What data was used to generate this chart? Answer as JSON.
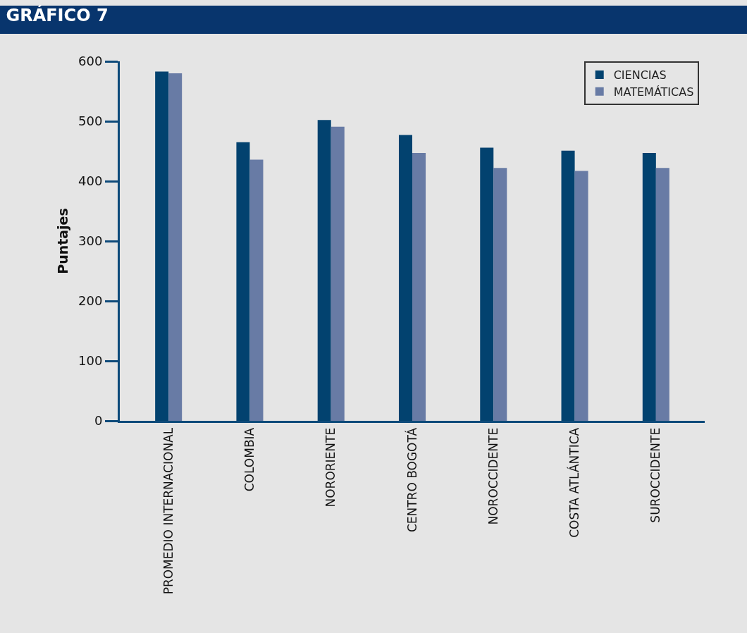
{
  "chart_data": {
    "type": "bar",
    "title": "GRÁFICO 7",
    "ylabel": "Puntajes",
    "categories": [
      "PROMEDIO INTERNACIONAL",
      "COLOMBIA",
      "NORORIENTE",
      "CENTRO BOGOTÁ",
      "NOROCCIDENTE",
      "COSTA ATLÁNTICA",
      "SUROCCIDENTE"
    ],
    "series": [
      {
        "name": "CIENCIAS",
        "color": "#02426f",
        "values": [
          583,
          465,
          502,
          477,
          456,
          451,
          447
        ]
      },
      {
        "name": "MATEMÁTICAS",
        "color": "#687ba5",
        "values": [
          580,
          436,
          491,
          447,
          422,
          417,
          422
        ]
      }
    ],
    "ylim": [
      0,
      600
    ],
    "yticks": [
      0,
      100,
      200,
      300,
      400,
      500,
      600
    ],
    "grid": false,
    "legend": "top right"
  }
}
